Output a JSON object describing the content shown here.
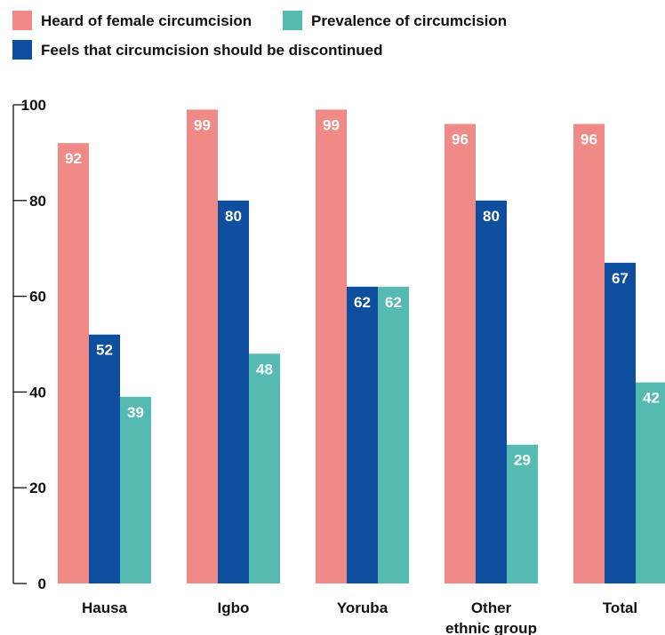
{
  "chart_data": {
    "type": "bar",
    "categories": [
      [
        "Hausa"
      ],
      [
        "Igbo"
      ],
      [
        "Yoruba"
      ],
      [
        "Other",
        "ethnic group"
      ],
      [
        "Total"
      ]
    ],
    "series": [
      {
        "name": "Heard of female circumcision",
        "color": "#f08a87",
        "values": [
          92,
          99,
          99,
          96,
          96
        ]
      },
      {
        "name": "Feels that circumcision should be discontinued",
        "color": "#0d4f9e",
        "values": [
          52,
          80,
          62,
          80,
          67
        ]
      },
      {
        "name": "Prevalence of circumcision",
        "color": "#55bab1",
        "values": [
          39,
          48,
          62,
          29,
          42
        ]
      }
    ],
    "yticks": [
      "0",
      "20",
      "40",
      "60",
      "80",
      "100"
    ],
    "ylim": [
      0,
      100
    ],
    "grid": false,
    "legend_position": "top-left"
  }
}
